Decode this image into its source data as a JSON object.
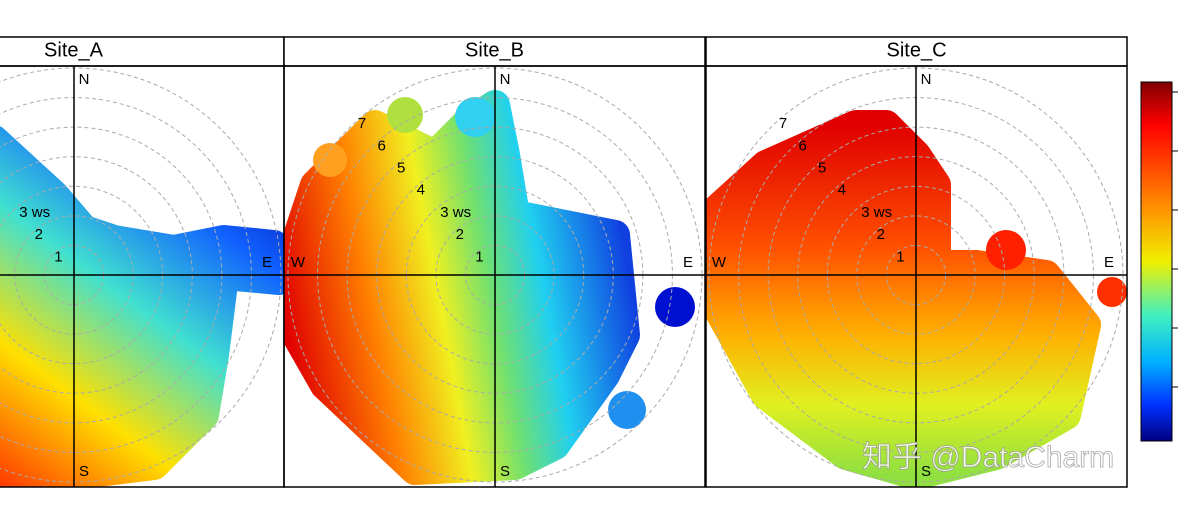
{
  "chart_data": [
    {
      "type": "polar",
      "title": "Site_A",
      "directions": [
        "N",
        "E",
        "S"
      ],
      "rlim": [
        0,
        7
      ],
      "rticks": [
        1,
        2,
        {
          "value": 3,
          "label": "3 ws"
        }
      ]
    },
    {
      "type": "polar",
      "title": "Site_B",
      "directions": [
        "N",
        "E",
        "S",
        "W"
      ],
      "rlim": [
        0,
        7
      ],
      "rticks": [
        1,
        2,
        {
          "value": 3,
          "label": "3 ws"
        },
        4,
        5,
        6,
        7
      ]
    },
    {
      "type": "polar",
      "title": "Site_C",
      "directions": [
        "N",
        "E",
        "S",
        "W"
      ],
      "rlim": [
        0,
        7
      ],
      "rticks": [
        1,
        2,
        {
          "value": 3,
          "label": "3 ws"
        },
        4,
        5,
        6,
        7
      ]
    }
  ],
  "watermark": "知乎 @DataCharm"
}
